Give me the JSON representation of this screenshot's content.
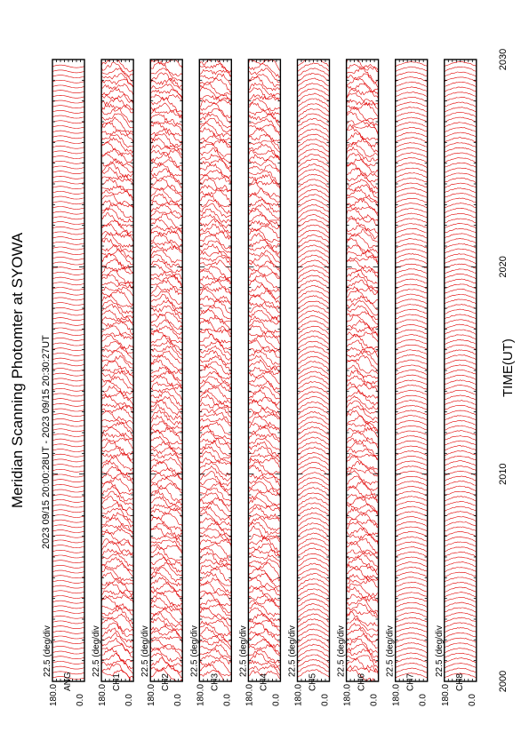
{
  "chart_data": {
    "type": "line",
    "title": "Meridian Scanning Photomter at SYOWA",
    "subtitle": "2023 09/15 20:00:28UT - 2023 09/15 20:30:27UT",
    "xlabel": "TIME(UT)",
    "x_ticks": [
      "2000",
      "2010",
      "2020",
      "2030"
    ],
    "x_range_minutes": [
      0,
      30
    ],
    "panel_y_range_deg": [
      0.0,
      180.0
    ],
    "panel_y_ticks": [
      "180.0",
      "0.0"
    ],
    "panel_scale_label": "22.5 (deg/div",
    "orientation": "rotated-90",
    "trace_color": "#e00000",
    "panels": [
      {
        "channel": "ANG",
        "scale": "22.5 (deg/div",
        "pattern": "sweep"
      },
      {
        "channel": "CH1",
        "scale": "22.5 (deg/div",
        "pattern": "noisy"
      },
      {
        "channel": "CH2",
        "scale": "22.5 (deg/div",
        "pattern": "noisy"
      },
      {
        "channel": "CH3",
        "scale": "22.5 (deg/div",
        "pattern": "noisy"
      },
      {
        "channel": "CH4",
        "scale": "22.5 (deg/div",
        "pattern": "noisy"
      },
      {
        "channel": "CH5",
        "scale": "22.5 (deg/div",
        "pattern": "arch"
      },
      {
        "channel": "CH6",
        "scale": "22.5 (deg/div",
        "pattern": "noisy"
      },
      {
        "channel": "CH7",
        "scale": "22.5 (deg/div",
        "pattern": "flat"
      },
      {
        "channel": "CH8",
        "scale": "22.5 (deg/div",
        "pattern": "flat"
      }
    ]
  }
}
